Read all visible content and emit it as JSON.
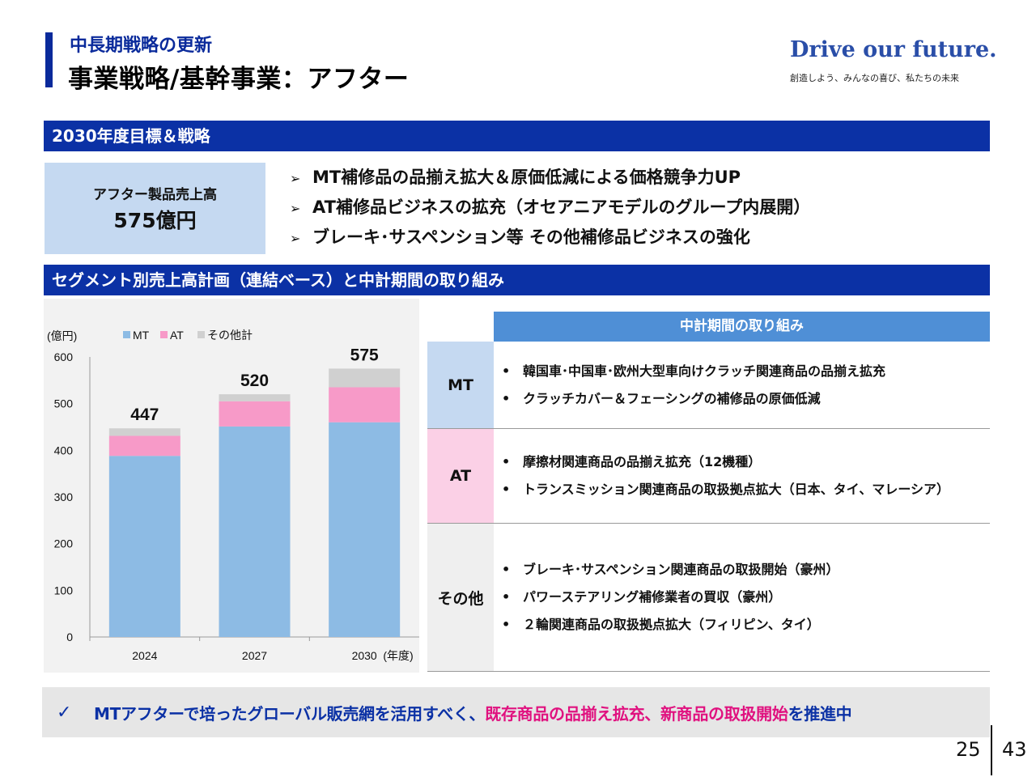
{
  "header": {
    "subtitle": "中長期戦略の更新",
    "title": "事業戦略/基幹事業：アフター",
    "brand": "Drive our future.",
    "brand_tagline": "創造しよう、みんなの喜び、私たちの未来"
  },
  "section1": {
    "title": "2030年度目標＆戦略",
    "target_label": "アフター製品売上高",
    "target_value": "575億円",
    "strategies": [
      "MT補修品の品揃え拡大＆原価低減による価格競争力UP",
      "AT補修品ビジネスの拡充（オセアニアモデルのグループ内展開）",
      "ブレーキ･サスペンション等 その他補修品ビジネスの強化"
    ],
    "bullet_icon": "arrow-right-icon"
  },
  "section2": {
    "title": "セグメント別売上高計画（連結ベース）と中計期間の取り組み"
  },
  "chart_data": {
    "type": "bar",
    "stacked": true,
    "unit_label": "(億円)",
    "xlabel_suffix": "(年度)",
    "categories": [
      "2024",
      "2027",
      "2030"
    ],
    "series": [
      {
        "name": "MT",
        "values": [
          388,
          451,
          460
        ],
        "color": "#8dbbe4"
      },
      {
        "name": "AT",
        "values": [
          43,
          54,
          75
        ],
        "color": "#f79ac8"
      },
      {
        "name": "その他計",
        "values": [
          16,
          15,
          40
        ],
        "color": "#d0d0d0"
      }
    ],
    "totals": [
      "447",
      "520",
      "575"
    ],
    "ylim": [
      0,
      600
    ],
    "yticks": [
      "0",
      "100",
      "200",
      "300",
      "400",
      "500",
      "600"
    ],
    "legend_position": "top-left",
    "grid": false
  },
  "initiatives": {
    "header": "中計期間の取り組み",
    "rows": [
      {
        "segment": "MT",
        "color": "#c5d9f1",
        "items": [
          "韓国車･中国車･欧州大型車向けクラッチ関連商品の品揃え拡充",
          "クラッチカバー＆フェーシングの補修品の原価低減"
        ]
      },
      {
        "segment": "AT",
        "color": "#fbd0e6",
        "items": [
          "摩擦材関連商品の品揃え拡充（12機種）",
          "トランスミッション関連商品の取扱拠点拡大（日本、タイ、マレーシア）"
        ]
      },
      {
        "segment": "その他",
        "color": "#efefef",
        "items": [
          "ブレーキ･サスペンション関連商品の取扱開始（豪州）",
          "パワーステアリング補修業者の買収（豪州）",
          "２輪関連商品の取扱拠点拡大（フィリピン、タイ）"
        ]
      }
    ]
  },
  "banner": {
    "check_icon": "checkmark-icon",
    "text_blue_1": "MTアフターで培ったグローバル販売網を活用すべく、",
    "text_pink": "既存商品の品揃え拡充、新商品の取扱開始",
    "text_blue_2": "を推進中"
  },
  "page": {
    "current": "25",
    "total": "43"
  }
}
